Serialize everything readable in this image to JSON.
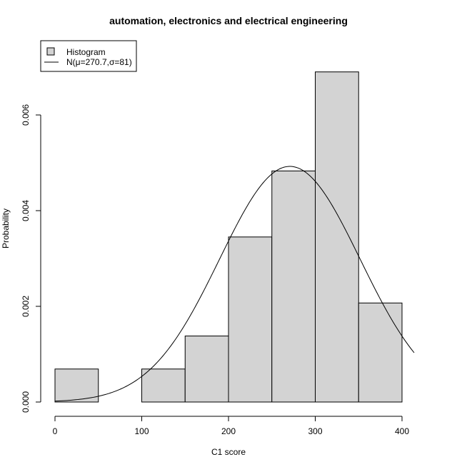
{
  "chart_data": {
    "type": "bar",
    "title": "automation, electronics and electrical engineering",
    "xlabel": "C1 score",
    "ylabel": "Probability",
    "xlim": [
      0,
      400
    ],
    "ylim": [
      0,
      0.006
    ],
    "x_ticks": [
      0,
      100,
      200,
      300,
      400
    ],
    "x_tick_labels": [
      "0",
      "100",
      "200",
      "300",
      "400"
    ],
    "y_ticks": [
      0,
      0.002,
      0.004,
      0.006
    ],
    "y_tick_labels": [
      "0.000",
      "0.002",
      "0.004",
      "0.006"
    ],
    "bins": [
      {
        "from": 0,
        "to": 50,
        "density": 0.00069
      },
      {
        "from": 50,
        "to": 100,
        "density": 0.0
      },
      {
        "from": 100,
        "to": 150,
        "density": 0.00069
      },
      {
        "from": 150,
        "to": 200,
        "density": 0.00138
      },
      {
        "from": 200,
        "to": 250,
        "density": 0.00345
      },
      {
        "from": 250,
        "to": 300,
        "density": 0.00483
      },
      {
        "from": 300,
        "to": 350,
        "density": 0.0069
      },
      {
        "from": 350,
        "to": 400,
        "density": 0.00207
      }
    ],
    "normal_curve": {
      "mu": 270.7,
      "sigma": 81,
      "x_range": [
        0,
        415
      ]
    },
    "bar_fill": "#d3d3d3",
    "legend": {
      "position": "top-left",
      "entries": [
        {
          "label": "Histogram",
          "kind": "box"
        },
        {
          "label": "N(μ=270.7,σ=81)",
          "kind": "line"
        }
      ]
    }
  }
}
